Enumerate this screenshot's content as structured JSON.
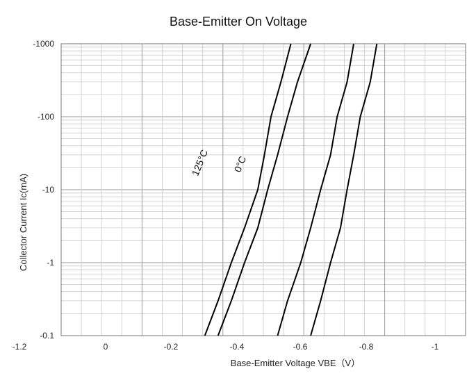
{
  "chart_data": {
    "type": "line",
    "title": "Base-Emitter On Voltage",
    "xlabel": "Base-Emitter Voltage  VBE（V）",
    "ylabel": "Collector Current  Ic(mA)",
    "x_scale": "linear",
    "y_scale": "log",
    "xlim": [
      0,
      -1.2
    ],
    "ylim": [
      -0.1,
      -1000
    ],
    "x_ticks": [
      {
        "value": -1.2,
        "label": "-1.2"
      },
      {
        "value": 0,
        "label": "0"
      },
      {
        "value": -0.2,
        "label": "-0.2"
      },
      {
        "value": -0.4,
        "label": "-0.4"
      },
      {
        "value": -0.6,
        "label": "-0.6"
      },
      {
        "value": -0.8,
        "label": "-0.8"
      },
      {
        "value": -1.0,
        "label": "-1"
      }
    ],
    "y_ticks": [
      {
        "value": -1000,
        "label": "-1000"
      },
      {
        "value": -100,
        "label": "-100"
      },
      {
        "value": -10,
        "label": "-10"
      },
      {
        "value": -1,
        "label": "-1"
      },
      {
        "value": -0.1,
        "label": "-0.1"
      }
    ],
    "grid": true,
    "series": [
      {
        "name": "125°C",
        "x": [
          -0.3,
          -0.34,
          -0.38,
          -0.42,
          -0.46,
          -0.48,
          -0.5,
          -0.53,
          -0.56
        ],
        "y": [
          -0.1,
          -0.3,
          -1,
          -3,
          -10,
          -30,
          -100,
          -300,
          -1000
        ]
      },
      {
        "name": "0°C",
        "x": [
          -0.34,
          -0.38,
          -0.42,
          -0.46,
          -0.49,
          -0.52,
          -0.55,
          -0.58,
          -0.62
        ],
        "y": [
          -0.1,
          -0.3,
          -1,
          -3,
          -10,
          -30,
          -100,
          -300,
          -1000
        ]
      },
      {
        "name": "",
        "x": [
          -0.52,
          -0.55,
          -0.59,
          -0.62,
          -0.65,
          -0.68,
          -0.7,
          -0.73,
          -0.75
        ],
        "y": [
          -0.1,
          -0.3,
          -1,
          -3,
          -10,
          -30,
          -100,
          -300,
          -1000
        ]
      },
      {
        "name": "",
        "x": [
          -0.62,
          -0.65,
          -0.68,
          -0.71,
          -0.73,
          -0.75,
          -0.77,
          -0.8,
          -0.82
        ],
        "y": [
          -0.1,
          -0.3,
          -1,
          -3,
          -10,
          -30,
          -100,
          -300,
          -1000
        ]
      }
    ]
  }
}
